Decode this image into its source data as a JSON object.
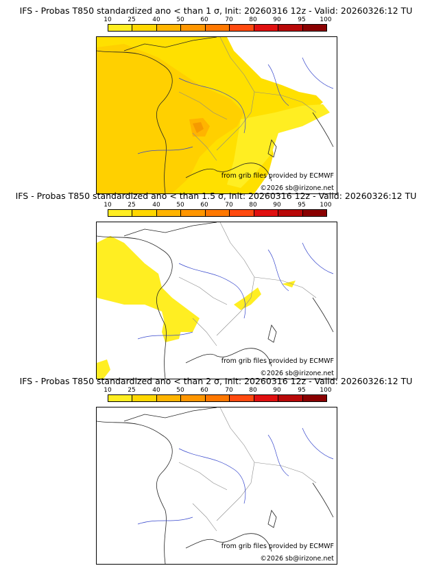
{
  "colorbar": {
    "ticks": [
      "10",
      "25",
      "40",
      "50",
      "60",
      "70",
      "80",
      "90",
      "95",
      "100"
    ],
    "colors": [
      "#ffee22",
      "#ffd700",
      "#ffb400",
      "#ff9600",
      "#ff7800",
      "#ff4a10",
      "#e01010",
      "#b80808",
      "#8a0000",
      "#5a0000"
    ]
  },
  "credit": {
    "source": "from grib files provided by ECMWF",
    "copyright": "©2026 sb@irizone.net"
  },
  "panels": [
    {
      "title": "IFS - Probas T850  standardized ano < than 1 σ, Init: 20260316 12z - Valid: 20260326:12 TU",
      "coverage": "high"
    },
    {
      "title": "IFS - Probas T850  standardized ano < than 1.5 σ, Init: 20260316 12z - Valid: 20260326:12 TU",
      "coverage": "medium"
    },
    {
      "title": "IFS - Probas T850  standardized ano < than 2 σ, Init: 20260316 12z - Valid: 20260326:12 TU",
      "coverage": "none"
    }
  ]
}
